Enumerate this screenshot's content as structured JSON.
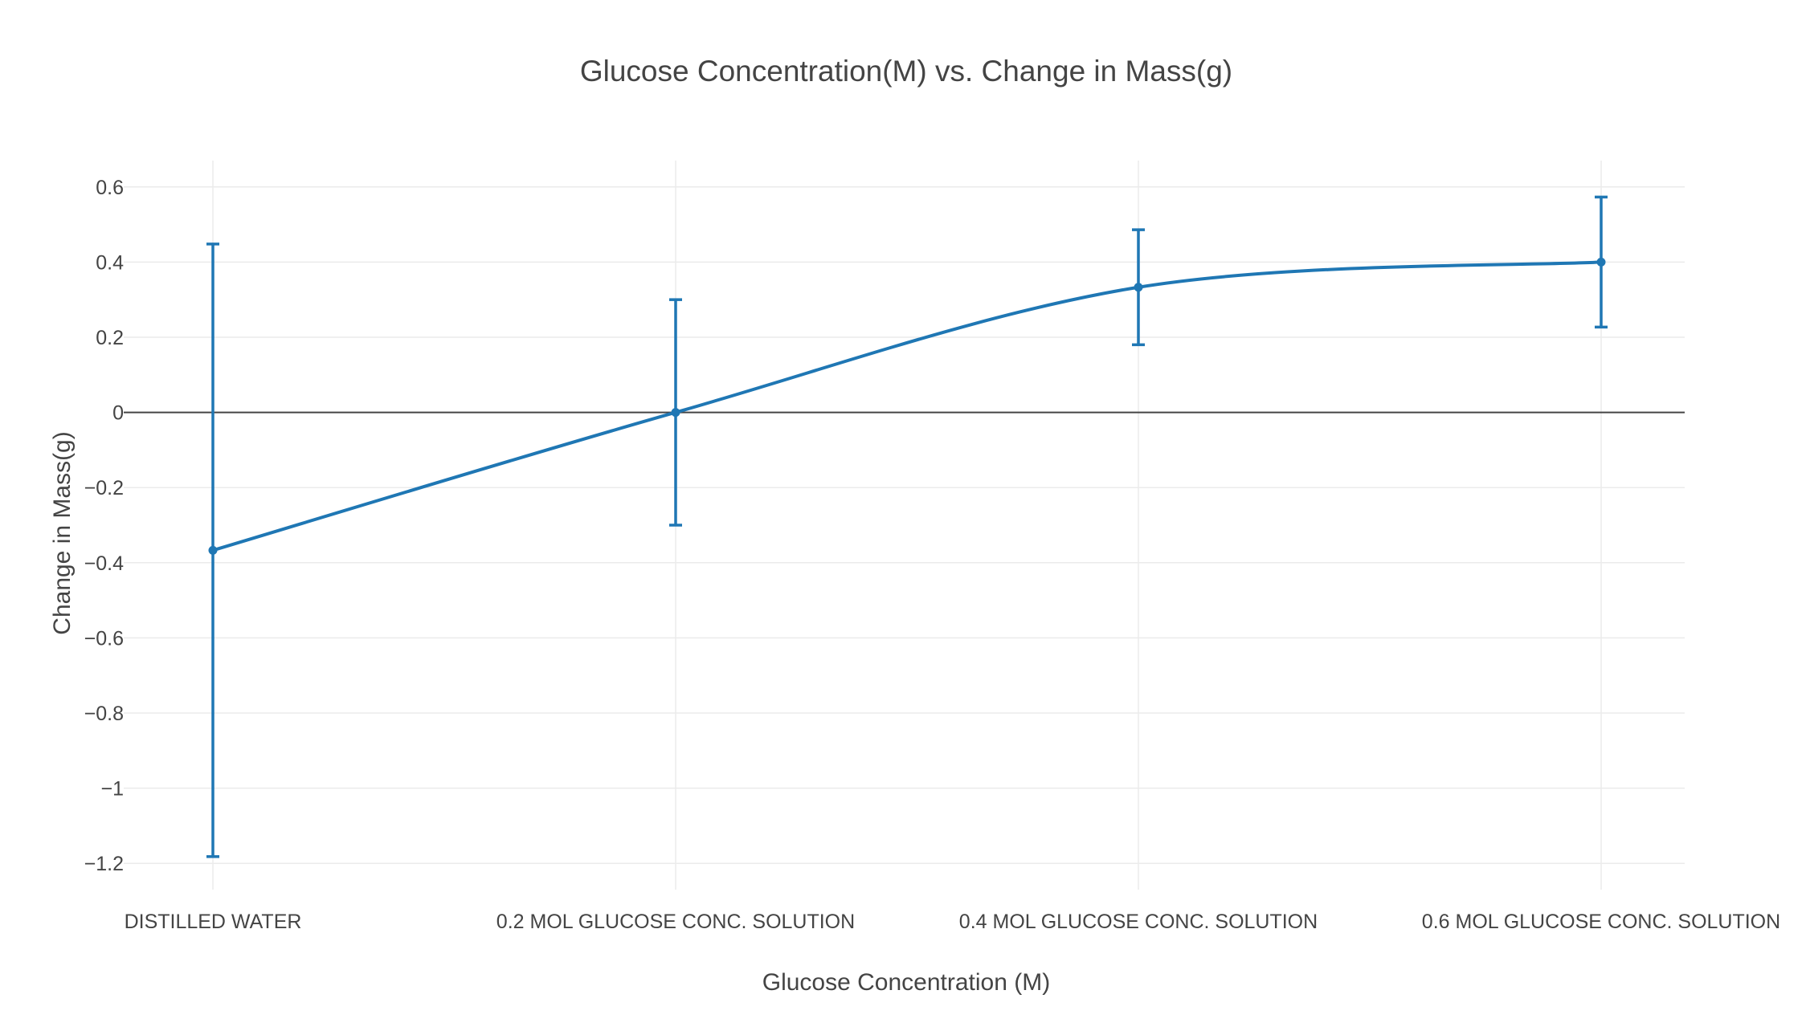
{
  "chart_data": {
    "type": "line",
    "title": "Glucose Concentration(M) vs. Change in Mass(g)",
    "xlabel": "Glucose Concentration (M)",
    "ylabel": "Change in Mass(g)",
    "categories": [
      "DISTILLED WATER",
      "0.2 MOL GLUCOSE CONC. SOLUTION",
      "0.4 MOL GLUCOSE CONC. SOLUTION",
      "0.6 MOL GLUCOSE CONC. SOLUTION"
    ],
    "series": [
      {
        "values": [
          -0.367,
          0.0,
          0.333,
          0.4
        ],
        "error_plus": [
          0.815,
          0.3,
          0.153,
          0.173
        ],
        "error_minus": [
          0.815,
          0.3,
          0.153,
          0.173
        ],
        "line_shape": "spline",
        "color": "#1f77b4"
      }
    ],
    "ylim": [
      -1.27,
      0.67
    ],
    "yticks": [
      0.6,
      0.4,
      0.2,
      0,
      -0.2,
      -0.4,
      -0.6,
      -0.8,
      -1,
      -1.2
    ],
    "ytick_labels": [
      "0.6",
      "0.4",
      "0.2",
      "0",
      "−0.2",
      "−0.4",
      "−0.6",
      "−0.8",
      "−1",
      "−1.2"
    ],
    "grid": true,
    "zero_line": true,
    "legend": "none"
  }
}
